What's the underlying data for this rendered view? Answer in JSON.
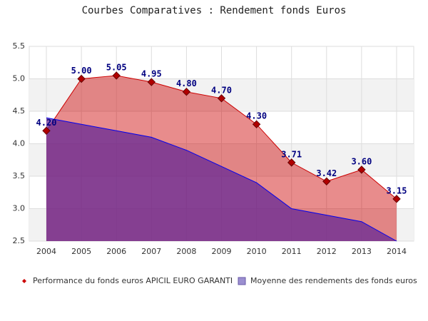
{
  "chart_data": {
    "type": "area",
    "title": "Courbes Comparatives : Rendement fonds Euros",
    "categories": [
      "2004",
      "2005",
      "2006",
      "2007",
      "2008",
      "2009",
      "2010",
      "2011",
      "2012",
      "2013",
      "2014"
    ],
    "ylim": [
      2.5,
      5.5
    ],
    "yticks": [
      2.5,
      {
        "value": 3,
        "label": "3.0"
      },
      3.5,
      {
        "value": 4,
        "label": "4.0"
      },
      4.5,
      {
        "value": 5,
        "label": "5.0"
      },
      5.5
    ],
    "grid": true,
    "series": [
      {
        "name": "Performance du fonds euros APICIL EURO GARANTI",
        "color": "#cc0000",
        "values": [
          4.2,
          5.0,
          5.05,
          4.95,
          4.8,
          4.7,
          4.3,
          3.71,
          3.42,
          3.6,
          3.15
        ],
        "value_labels": [
          "4.20",
          "5.00",
          "5.05",
          "4.95",
          "4.80",
          "4.70",
          "4.30",
          "3.71",
          "3.42",
          "3.60",
          "3.15"
        ]
      },
      {
        "name": "Moyenne des rendements des fonds euros",
        "color": "#0000ee",
        "values": [
          4.4,
          4.3,
          4.2,
          4.1,
          3.9,
          3.65,
          3.4,
          3.0,
          2.9,
          2.8,
          2.5
        ]
      }
    ]
  }
}
